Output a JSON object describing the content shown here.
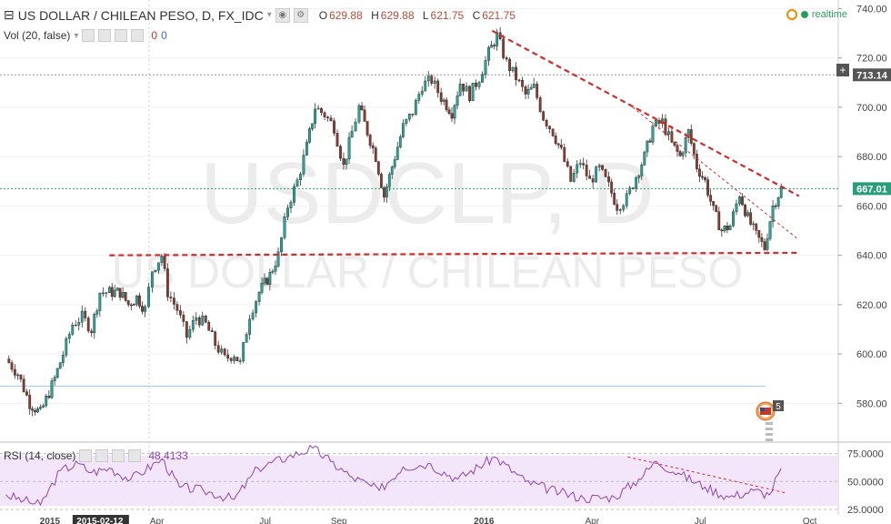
{
  "header": {
    "symbol": "US DOLLAR / CHILEAN PESO, D, FX_IDC",
    "open_label": "O",
    "open": "629.88",
    "high_label": "H",
    "high": "629.88",
    "low_label": "L",
    "low": "621.75",
    "close_label": "C",
    "close": "621.75",
    "realtime": "realtime"
  },
  "volume": {
    "label": "Vol (20, false)",
    "v1": "0",
    "v2": "0"
  },
  "rsi": {
    "label": "RSI (14, close)",
    "value": "48.4133"
  },
  "watermark": {
    "line1": "USDCLP, D",
    "line2": "US DOLLAR / CHILEAN PESO"
  },
  "markers": {
    "price_tag_left": "713.14",
    "price_tag_right": "667.01",
    "event_count": "5"
  },
  "colors": {
    "up": "#26a69a",
    "down": "#8e3a2c",
    "trend": "#d22b2b",
    "rsi_line": "#8e44ad",
    "rsi_band": "#f3e6fb"
  },
  "chart_data": {
    "type": "candlestick",
    "title": "US DOLLAR / CHILEAN PESO, D, FX_IDC",
    "ylabel": "",
    "xlabel": "",
    "ylim": [
      565,
      742
    ],
    "y_ticks": [
      580,
      600,
      620,
      640,
      660,
      680,
      700,
      720,
      740
    ],
    "x_tick_labels": [
      "2015",
      "2015-02-12",
      "Apr",
      "Jul",
      "Sep",
      "2016",
      "Apr",
      "Jul",
      "Oct"
    ],
    "horizontal_lines": [
      713.14,
      667.01,
      587
    ],
    "trendlines": [
      {
        "name": "resistance",
        "from": [
          "2015-02-20",
          640
        ],
        "to": [
          "2016-09-20",
          641
        ]
      },
      {
        "name": "downtrend",
        "from": [
          "2016-01-08",
          731
        ],
        "to": [
          "2016-09-22",
          664
        ]
      },
      {
        "name": "downtrend-2",
        "from": [
          "2016-05-05",
          700
        ],
        "to": [
          "2016-09-20",
          647
        ]
      }
    ],
    "close_path": [
      [
        "2014-11-25",
        598
      ],
      [
        "2014-12-05",
        592
      ],
      [
        "2014-12-15",
        580
      ],
      [
        "2014-12-24",
        576
      ],
      [
        "2015-01-05",
        590
      ],
      [
        "2015-01-12",
        600
      ],
      [
        "2015-01-20",
        612
      ],
      [
        "2015-01-28",
        615
      ],
      [
        "2015-02-05",
        610
      ],
      [
        "2015-02-12",
        625
      ],
      [
        "2015-02-20",
        625
      ],
      [
        "2015-03-01",
        625
      ],
      [
        "2015-03-08",
        620
      ],
      [
        "2015-03-15",
        623
      ],
      [
        "2015-03-22",
        618
      ],
      [
        "2015-03-28",
        634
      ],
      [
        "2015-04-05",
        640
      ],
      [
        "2015-04-10",
        625
      ],
      [
        "2015-04-18",
        618
      ],
      [
        "2015-04-26",
        607
      ],
      [
        "2015-05-04",
        615
      ],
      [
        "2015-05-12",
        612
      ],
      [
        "2015-05-20",
        604
      ],
      [
        "2015-05-28",
        598
      ],
      [
        "2015-06-05",
        600
      ],
      [
        "2015-06-10",
        596
      ],
      [
        "2015-06-18",
        616
      ],
      [
        "2015-06-26",
        625
      ],
      [
        "2015-07-05",
        632
      ],
      [
        "2015-07-12",
        640
      ],
      [
        "2015-07-20",
        660
      ],
      [
        "2015-07-28",
        670
      ],
      [
        "2015-08-05",
        684
      ],
      [
        "2015-08-12",
        700
      ],
      [
        "2015-08-20",
        697
      ],
      [
        "2015-08-28",
        692
      ],
      [
        "2015-09-05",
        676
      ],
      [
        "2015-09-12",
        690
      ],
      [
        "2015-09-18",
        700
      ],
      [
        "2015-09-25",
        690
      ],
      [
        "2015-10-02",
        680
      ],
      [
        "2015-10-09",
        664
      ],
      [
        "2015-10-18",
        680
      ],
      [
        "2015-10-25",
        692
      ],
      [
        "2015-11-02",
        698
      ],
      [
        "2015-11-10",
        709
      ],
      [
        "2015-11-18",
        711
      ],
      [
        "2015-11-26",
        704
      ],
      [
        "2015-12-05",
        698
      ],
      [
        "2015-12-12",
        710
      ],
      [
        "2015-12-20",
        705
      ],
      [
        "2015-12-28",
        712
      ],
      [
        "2016-01-05",
        722
      ],
      [
        "2016-01-12",
        729
      ],
      [
        "2016-01-20",
        718
      ],
      [
        "2016-01-28",
        712
      ],
      [
        "2016-02-05",
        705
      ],
      [
        "2016-02-12",
        708
      ],
      [
        "2016-02-20",
        696
      ],
      [
        "2016-02-28",
        690
      ],
      [
        "2016-03-06",
        682
      ],
      [
        "2016-03-14",
        670
      ],
      [
        "2016-03-22",
        678
      ],
      [
        "2016-03-30",
        670
      ],
      [
        "2016-04-07",
        675
      ],
      [
        "2016-04-15",
        668
      ],
      [
        "2016-04-22",
        660
      ],
      [
        "2016-04-30",
        663
      ],
      [
        "2016-05-08",
        672
      ],
      [
        "2016-05-15",
        680
      ],
      [
        "2016-05-22",
        692
      ],
      [
        "2016-05-30",
        694
      ],
      [
        "2016-06-07",
        685
      ],
      [
        "2016-06-14",
        680
      ],
      [
        "2016-06-21",
        690
      ],
      [
        "2016-06-28",
        676
      ],
      [
        "2016-07-05",
        670
      ],
      [
        "2016-07-12",
        658
      ],
      [
        "2016-07-19",
        650
      ],
      [
        "2016-07-26",
        652
      ],
      [
        "2016-08-03",
        665
      ],
      [
        "2016-08-10",
        655
      ],
      [
        "2016-08-17",
        648
      ],
      [
        "2016-08-24",
        643
      ],
      [
        "2016-08-31",
        660
      ],
      [
        "2016-09-07",
        667
      ]
    ],
    "rsi": {
      "ylim": [
        25,
        82
      ],
      "y_ticks": [
        25,
        50,
        75
      ],
      "band": [
        30,
        70
      ],
      "path": [
        [
          "2014-11-25",
          38
        ],
        [
          "2014-12-10",
          33
        ],
        [
          "2014-12-24",
          29
        ],
        [
          "2015-01-10",
          60
        ],
        [
          "2015-01-25",
          66
        ],
        [
          "2015-02-05",
          58
        ],
        [
          "2015-02-20",
          62
        ],
        [
          "2015-03-10",
          52
        ],
        [
          "2015-04-05",
          70
        ],
        [
          "2015-04-20",
          45
        ],
        [
          "2015-05-10",
          42
        ],
        [
          "2015-06-05",
          34
        ],
        [
          "2015-06-25",
          62
        ],
        [
          "2015-07-20",
          72
        ],
        [
          "2015-08-10",
          80
        ],
        [
          "2015-08-25",
          68
        ],
        [
          "2015-09-10",
          55
        ],
        [
          "2015-10-05",
          42
        ],
        [
          "2015-10-25",
          63
        ],
        [
          "2015-11-15",
          66
        ],
        [
          "2015-12-10",
          52
        ],
        [
          "2016-01-10",
          72
        ],
        [
          "2016-02-05",
          50
        ],
        [
          "2016-03-05",
          40
        ],
        [
          "2016-03-25",
          35
        ],
        [
          "2016-04-20",
          36
        ],
        [
          "2016-05-10",
          52
        ],
        [
          "2016-05-25",
          68
        ],
        [
          "2016-06-15",
          56
        ],
        [
          "2016-07-05",
          45
        ],
        [
          "2016-07-25",
          36
        ],
        [
          "2016-08-15",
          42
        ],
        [
          "2016-08-28",
          38
        ],
        [
          "2016-09-07",
          62
        ]
      ]
    }
  }
}
